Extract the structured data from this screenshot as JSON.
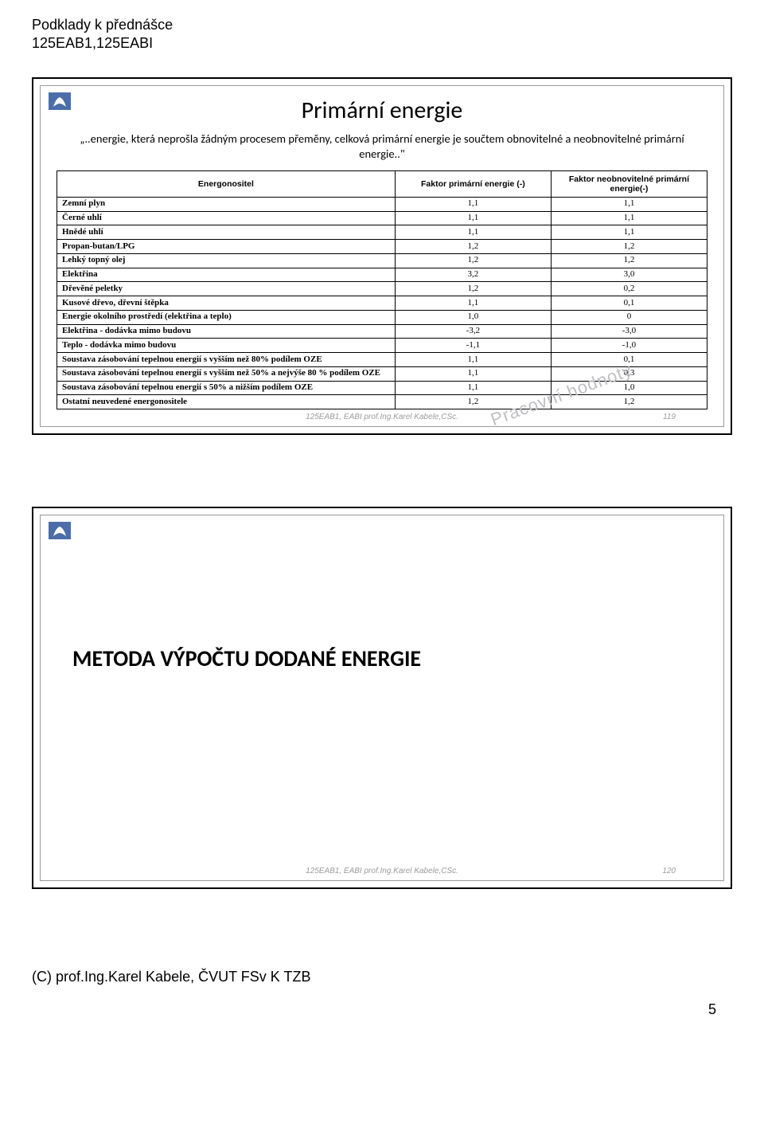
{
  "header": {
    "line1": "Podklady k přednášce",
    "line2": "125EAB1,125EABI"
  },
  "slide1": {
    "title": "Primární energie",
    "subtitle": "„..energie, která neprošla žádným procesem přeměny, celková primární energie je součtem obnovitelné a neobnovitelné primární energie..\"",
    "columns": {
      "c0": "Energonositel",
      "c1": "Faktor primární energie (-)",
      "c2": "Faktor neobnovitelné primární energie(-)"
    },
    "rows": [
      {
        "label": "Zemní plyn",
        "v1": "1,1",
        "v2": "1,1"
      },
      {
        "label": "Černé uhlí",
        "v1": "1,1",
        "v2": "1,1"
      },
      {
        "label": "Hnědé uhlí",
        "v1": "1,1",
        "v2": "1,1"
      },
      {
        "label": "Propan-butan/LPG",
        "v1": "1,2",
        "v2": "1,2"
      },
      {
        "label": "Lehký topný olej",
        "v1": "1,2",
        "v2": "1,2"
      },
      {
        "label": "Elektřina",
        "v1": "3,2",
        "v2": "3,0"
      },
      {
        "label": "Dřevěné peletky",
        "v1": "1,2",
        "v2": "0,2"
      },
      {
        "label": "Kusové dřevo, dřevní štěpka",
        "v1": "1,1",
        "v2": "0,1"
      },
      {
        "label": "Energie okolního prostředí (elektřina a teplo)",
        "v1": "1,0",
        "v2": "0"
      },
      {
        "label": "Elektřina - dodávka mimo budovu",
        "v1": "-3,2",
        "v2": "-3,0"
      },
      {
        "label": "Teplo - dodávka mimo budovu",
        "v1": "-1,1",
        "v2": "-1,0"
      },
      {
        "label": "Soustava zásobování tepelnou energií s vyšším než 80% podílem OZE",
        "v1": "1,1",
        "v2": "0,1"
      },
      {
        "label": "Soustava zásobování tepelnou energií s vyšším než 50% a nejvýše 80 % podílem OZE",
        "v1": "1,1",
        "v2": "0,3"
      },
      {
        "label": "Soustava zásobování tepelnou energií s 50% a nižším podílem OZE",
        "v1": "1,1",
        "v2": "1,0"
      },
      {
        "label": "Ostatní neuvedené energonositele",
        "v1": "1,2",
        "v2": "1,2"
      }
    ],
    "watermark": "Pracovní hodnoty",
    "footer_center": "125EAB1, EABI prof.Ing.Karel Kabele,CSc.",
    "footer_num": "119"
  },
  "slide2": {
    "title": "METODA VÝPOČTU DODANÉ ENERGIE",
    "footer_center": "125EAB1, EABI prof.Ing.Karel Kabele,CSc.",
    "footer_num": "120"
  },
  "page_footer": "(C) prof.Ing.Karel Kabele, ČVUT FSv K TZB",
  "page_number": "5",
  "colors": {
    "logo_bg": "#4b6ea8",
    "logo_lion": "#ffffff",
    "watermark": "#bfbfc4",
    "footer_gray": "#9b9b9b",
    "border": "#000000"
  }
}
